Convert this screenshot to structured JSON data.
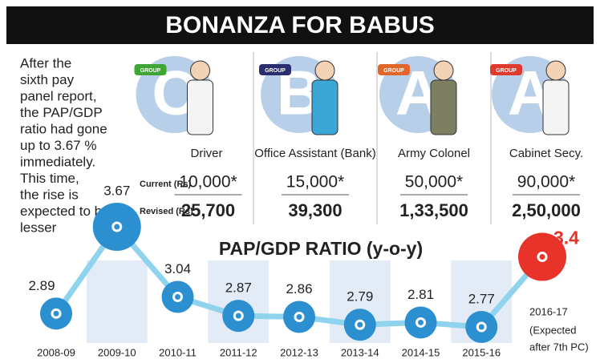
{
  "header": {
    "title": "BONANZA FOR BABUS"
  },
  "note": {
    "lines": [
      "After the",
      "sixth pay",
      "panel report,",
      "the PAP/GDP",
      "ratio had gone",
      "up to 3.67 %",
      "immediately.",
      "This time,",
      "the rise is",
      "expected to be",
      "lesser"
    ]
  },
  "salary": {
    "row_labels": [
      "Current (Rs)",
      "Revised (Rs)"
    ],
    "groups": [
      {
        "badge": "GROUP",
        "badge_color": "#3fa535",
        "letter": "C",
        "role": "Driver",
        "current": "10,000*",
        "revised": "25,700"
      },
      {
        "badge": "GROUP",
        "badge_color": "#2b2e6e",
        "letter": "B",
        "role": "Office Assistant (Bank)",
        "current": "15,000*",
        "revised": "39,300"
      },
      {
        "badge": "GROUP",
        "badge_color": "#e0662a",
        "letter": "A",
        "role": "Army Colonel",
        "current": "50,000*",
        "revised": "1,33,500"
      },
      {
        "badge": "GROUP",
        "badge_color": "#e03a2e",
        "letter": "A",
        "role": "Cabinet Secy.",
        "current": "90,000*",
        "revised": "2,50,000"
      }
    ]
  },
  "chart_data": {
    "type": "line",
    "title": "PAP/GDP RATIO (y-o-y)",
    "categories": [
      "2008-09",
      "2009-10",
      "2010-11",
      "2011-12",
      "2012-13",
      "2013-14",
      "2014-15",
      "2015-16",
      "2016-17"
    ],
    "values": [
      2.89,
      3.67,
      3.04,
      2.87,
      2.86,
      2.79,
      2.81,
      2.77,
      3.4
    ],
    "color": "#2b8fd0",
    "line_color": "#8fd3ef",
    "highlight_color": "#e8332a",
    "band_color": "#e3ecf6",
    "annotation": [
      "(Expected",
      "after 7th PC)"
    ]
  }
}
